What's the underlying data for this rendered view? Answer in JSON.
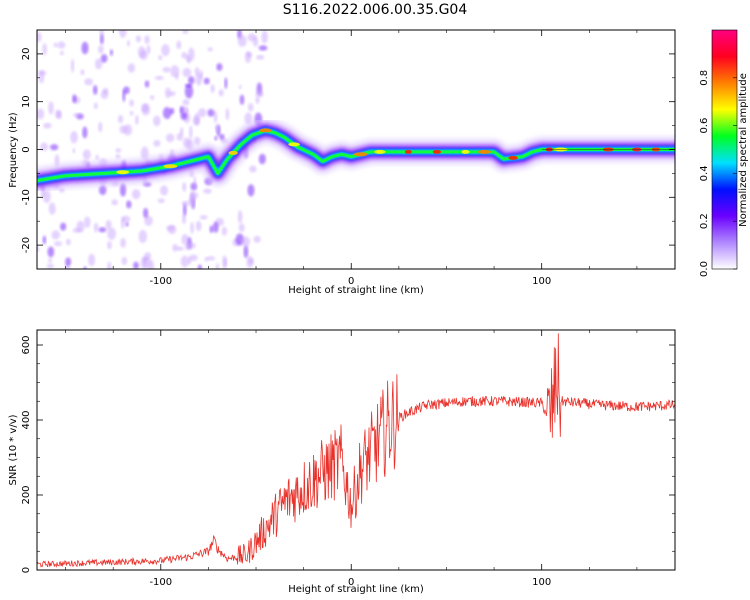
{
  "title": "S116.2022.006.00.35.G04",
  "chart_data": [
    {
      "type": "heatmap",
      "xlabel": "Height of straight line (km)",
      "ylabel": "Frequency (Hz)",
      "xlim": [
        -165,
        170
      ],
      "ylim": [
        -25,
        25
      ],
      "xticks": [
        -100,
        0,
        100
      ],
      "yticks": [
        -20,
        -10,
        0,
        10,
        20
      ],
      "colorbar": {
        "label": "Normalized spectral amplitude",
        "ticks": [
          "0.0",
          "0.2",
          "0.4",
          "0.6",
          "0.8"
        ],
        "range": [
          0,
          1
        ],
        "colormap": [
          "#ffffff",
          "#b088ff",
          "#6a00ff",
          "#0010ff",
          "#00e0ff",
          "#00ff20",
          "#ffff00",
          "#ff8000",
          "#ff0020",
          "#ff0080"
        ]
      },
      "ridge": {
        "x": [
          -165,
          -150,
          -130,
          -110,
          -95,
          -85,
          -75,
          -70,
          -65,
          -58,
          -52,
          -45,
          -40,
          -35,
          -28,
          -20,
          -15,
          -10,
          -5,
          0,
          10,
          20,
          40,
          60,
          75,
          80,
          90,
          95,
          100,
          120,
          140,
          170
        ],
        "y": [
          -6.5,
          -5.5,
          -5,
          -4.5,
          -3.5,
          -2.5,
          -1.5,
          -5,
          -2,
          1,
          3,
          4,
          3.5,
          2.5,
          0.5,
          -1,
          -2.5,
          -1.5,
          -1,
          -1.5,
          -0.5,
          -0.5,
          -0.5,
          -0.5,
          -0.5,
          -2,
          -1.5,
          -0.5,
          0,
          0,
          0,
          0
        ]
      }
    },
    {
      "type": "line",
      "xlabel": "Height of straight line (km)",
      "ylabel": "SNR (10 * v/v)",
      "xlim": [
        -165,
        170
      ],
      "ylim": [
        0,
        640
      ],
      "xticks": [
        -100,
        0,
        100
      ],
      "yticks": [
        0,
        200,
        400,
        600
      ],
      "color": "#e8312a",
      "envelope": {
        "x": [
          -165,
          -130,
          -100,
          -85,
          -75,
          -72,
          -70,
          -65,
          -55,
          -45,
          -35,
          -25,
          -15,
          -5,
          0,
          5,
          15,
          20,
          30,
          40,
          60,
          80,
          100,
          104,
          106,
          108,
          110,
          130,
          150,
          170
        ],
        "y": [
          15,
          20,
          25,
          35,
          50,
          80,
          55,
          30,
          40,
          110,
          180,
          220,
          260,
          290,
          170,
          270,
          350,
          390,
          420,
          440,
          450,
          450,
          445,
          400,
          440,
          520,
          450,
          440,
          435,
          440
        ]
      }
    }
  ]
}
